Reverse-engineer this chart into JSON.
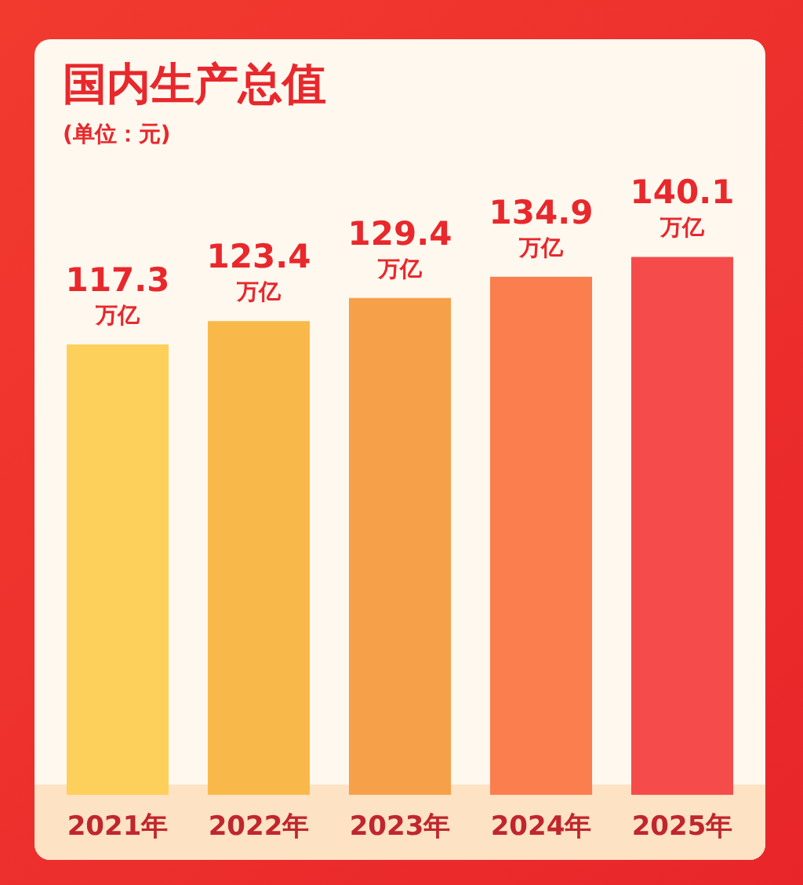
{
  "chart_data": {
    "type": "bar",
    "title": "国内生产总值",
    "subtitle": "(单位：元)",
    "categories": [
      "2021年",
      "2022年",
      "2023年",
      "2024年",
      "2025年"
    ],
    "values": [
      117.3,
      123.4,
      129.4,
      134.9,
      140.1
    ],
    "colors": [
      "#fdd05c",
      "#f9b94a",
      "#f7a04a",
      "#fb7f4e",
      "#f54b4b"
    ],
    "value_labels": [
      "117.3 万亿",
      "123.4 万亿",
      "129.4 万亿",
      "134.9 万亿",
      "140.1 万亿"
    ],
    "grid": false,
    "legend": false
  }
}
